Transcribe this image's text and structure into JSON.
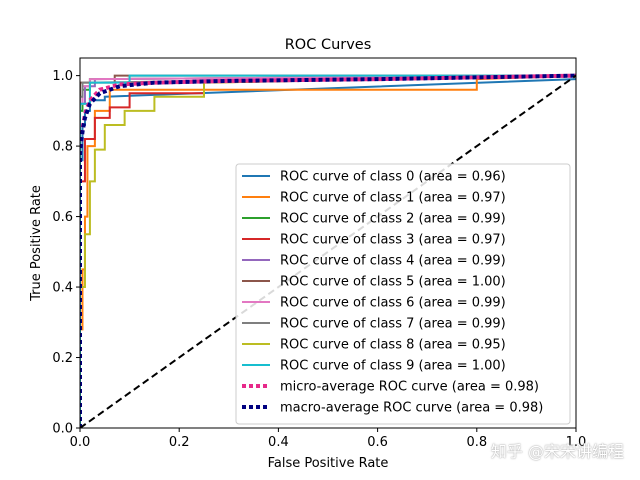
{
  "watermark": "知乎 @宋宋讲编程",
  "chart_data": {
    "type": "line",
    "title": "ROC Curves",
    "xlabel": "False Positive Rate",
    "ylabel": "True Positive Rate",
    "xlim": [
      0.0,
      1.0
    ],
    "ylim": [
      0.0,
      1.05
    ],
    "xticks": [
      "0.0",
      "0.2",
      "0.4",
      "0.6",
      "0.8",
      "1.0"
    ],
    "yticks": [
      "0.0",
      "0.2",
      "0.4",
      "0.6",
      "0.8",
      "1.0"
    ],
    "xtick_values": [
      0,
      0.2,
      0.4,
      0.6,
      0.8,
      1.0
    ],
    "ytick_values": [
      0,
      0.2,
      0.4,
      0.6,
      0.8,
      1.0
    ],
    "grid": false,
    "legend_position": "lower-right",
    "series": [
      {
        "name": "ROC curve of class 0 (area = 0.96)",
        "color": "#1f77b4",
        "style": "solid",
        "x": [
          0,
          0,
          0.005,
          0.005,
          0.01,
          0.01,
          0.02,
          0.02,
          0.05,
          0.05,
          1.0
        ],
        "y": [
          0,
          0.76,
          0.76,
          0.86,
          0.86,
          0.9,
          0.9,
          0.93,
          0.93,
          0.94,
          0.99
        ]
      },
      {
        "name": "ROC curve of class 1 (area = 0.97)",
        "color": "#ff7f0e",
        "style": "solid",
        "x": [
          0,
          0,
          0.005,
          0.005,
          0.01,
          0.01,
          0.015,
          0.015,
          0.03,
          0.03,
          0.06,
          0.06,
          0.8,
          0.8,
          1.0
        ],
        "y": [
          0,
          0.28,
          0.28,
          0.45,
          0.45,
          0.6,
          0.6,
          0.8,
          0.8,
          0.9,
          0.9,
          0.96,
          0.96,
          0.99,
          1.0
        ]
      },
      {
        "name": "ROC curve of class 2 (area = 0.99)",
        "color": "#2ca02c",
        "style": "solid",
        "x": [
          0,
          0,
          0.005,
          0.005,
          0.02,
          0.02,
          1.0
        ],
        "y": [
          0,
          0.9,
          0.9,
          0.96,
          0.96,
          0.99,
          1.0
        ]
      },
      {
        "name": "ROC curve of class 3 (area = 0.97)",
        "color": "#d62728",
        "style": "solid",
        "x": [
          0,
          0,
          0.01,
          0.01,
          0.03,
          0.03,
          0.06,
          0.06,
          0.1,
          0.1,
          0.25,
          0.25,
          1.0
        ],
        "y": [
          0,
          0.7,
          0.7,
          0.82,
          0.82,
          0.88,
          0.88,
          0.91,
          0.91,
          0.95,
          0.95,
          0.98,
          1.0
        ]
      },
      {
        "name": "ROC curve of class 4 (area = 0.99)",
        "color": "#9467bd",
        "style": "solid",
        "x": [
          0,
          0,
          0.01,
          0.01,
          0.03,
          0.03,
          1.0
        ],
        "y": [
          0,
          0.92,
          0.92,
          0.97,
          0.97,
          0.99,
          1.0
        ]
      },
      {
        "name": "ROC curve of class 5 (area = 1.00)",
        "color": "#8c564b",
        "style": "solid",
        "x": [
          0,
          0,
          0.07,
          0.07,
          1.0
        ],
        "y": [
          0,
          0.98,
          0.98,
          1.0,
          1.0
        ]
      },
      {
        "name": "ROC curve of class 6 (area = 0.99)",
        "color": "#e377c2",
        "style": "solid",
        "x": [
          0,
          0,
          0.005,
          0.005,
          0.02,
          0.02,
          1.0
        ],
        "y": [
          0,
          0.92,
          0.92,
          0.97,
          0.97,
          0.99,
          1.0
        ]
      },
      {
        "name": "ROC curve of class 7 (area = 0.99)",
        "color": "#7f7f7f",
        "style": "solid",
        "x": [
          0,
          0,
          0.005,
          0.005,
          0.02,
          0.02,
          1.0
        ],
        "y": [
          0,
          0.94,
          0.94,
          0.98,
          0.98,
          0.98,
          1.0
        ]
      },
      {
        "name": "ROC curve of class 8 (area = 0.95)",
        "color": "#bcbd22",
        "style": "solid",
        "x": [
          0,
          0,
          0.01,
          0.01,
          0.02,
          0.02,
          0.03,
          0.03,
          0.05,
          0.05,
          0.09,
          0.09,
          0.15,
          0.15,
          0.25,
          0.25,
          1.0
        ],
        "y": [
          0,
          0.4,
          0.4,
          0.55,
          0.55,
          0.7,
          0.7,
          0.79,
          0.79,
          0.86,
          0.86,
          0.9,
          0.9,
          0.94,
          0.94,
          0.98,
          1.0
        ]
      },
      {
        "name": "ROC curve of class 9 (area = 1.00)",
        "color": "#17becf",
        "style": "solid",
        "x": [
          0,
          0,
          0.02,
          0.02,
          0.1,
          0.1,
          1.0
        ],
        "y": [
          0,
          0.92,
          0.92,
          0.98,
          0.98,
          1.0,
          1.0
        ]
      },
      {
        "name": "micro-average ROC curve (area = 0.98)",
        "color": "#e7298a",
        "style": "dotted",
        "x": [
          0,
          0,
          0.005,
          0.01,
          0.02,
          0.04,
          0.08,
          0.15,
          0.3,
          0.6,
          1.0
        ],
        "y": [
          0,
          0.8,
          0.85,
          0.89,
          0.93,
          0.96,
          0.975,
          0.98,
          0.985,
          0.99,
          1.0
        ]
      },
      {
        "name": "macro-average ROC curve (area = 0.98)",
        "color": "#000080",
        "style": "dotted",
        "x": [
          0,
          0,
          0.005,
          0.01,
          0.02,
          0.04,
          0.08,
          0.15,
          0.3,
          0.6,
          1.0
        ],
        "y": [
          0,
          0.78,
          0.84,
          0.88,
          0.92,
          0.95,
          0.97,
          0.98,
          0.985,
          0.99,
          1.0
        ]
      },
      {
        "name": "",
        "color": "#000000",
        "style": "dashed",
        "x": [
          0,
          1.0
        ],
        "y": [
          0,
          1.0
        ]
      }
    ]
  }
}
